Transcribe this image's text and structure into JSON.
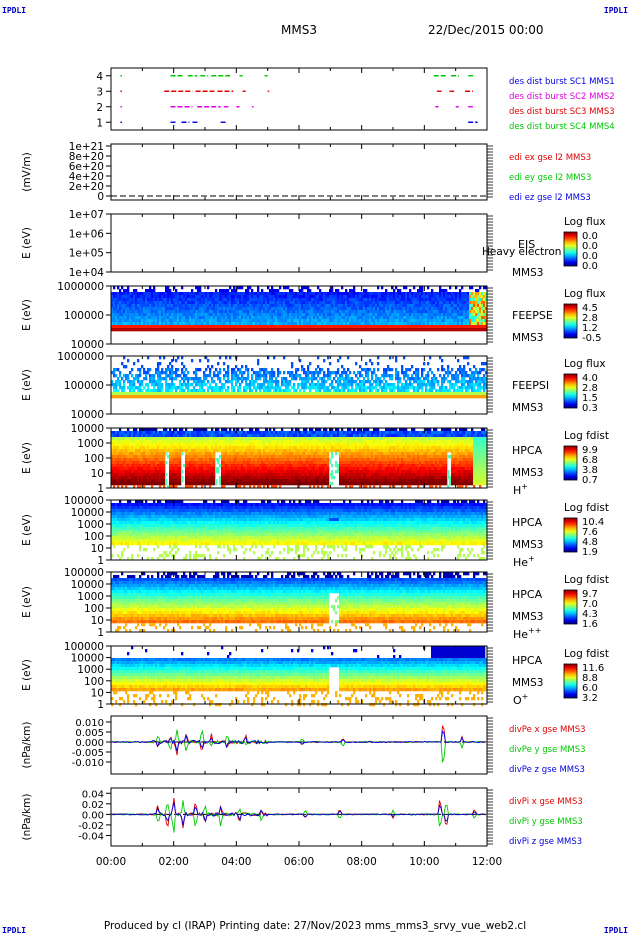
{
  "header": {
    "corner_tl": "IPDLI",
    "corner_tr": "IPDLI",
    "corner_bl": "IPDLI",
    "corner_br": "IPDLI",
    "spacecraft": "MMS3",
    "date": "22/Dec/2015 00:00"
  },
  "footer": {
    "text": "Produced by cl (IRAP)    Printing date: 27/Nov/2023    mms_mms3_srvy_vue_web2.cl"
  },
  "colors": {
    "red": "#e00000",
    "green": "#00c800",
    "blue": "#0000e0",
    "magenta": "#e000e0"
  },
  "chart_data": [
    {
      "type": "scatter",
      "id": "burst",
      "ylabel": "",
      "ylim": [
        0.5,
        4.5
      ],
      "yticks": [
        1,
        2,
        3,
        4
      ],
      "xlim": [
        0,
        12
      ],
      "legend": [
        {
          "text": "des dist burst SC1 MMS1",
          "color": "#0000e0"
        },
        {
          "text": "des dist burst SC2 MMS2",
          "color": "#e000e0"
        },
        {
          "text": "des dist burst SC3 MMS3",
          "color": "#e00000"
        },
        {
          "text": "des dist burst SC4 MMS4",
          "color": "#00c800"
        }
      ],
      "series": [
        {
          "level": 4,
          "color": "#00c800",
          "segments": [
            [
              0.3,
              0.35
            ],
            [
              1.9,
              2.3
            ],
            [
              2.45,
              2.75
            ],
            [
              2.85,
              3.1
            ],
            [
              3.2,
              3.8
            ],
            [
              4.1,
              4.2
            ],
            [
              4.9,
              5.0
            ],
            [
              10.3,
              10.7
            ],
            [
              10.85,
              11.1
            ],
            [
              11.4,
              11.6
            ]
          ]
        },
        {
          "level": 3,
          "color": "#e00000",
          "segments": [
            [
              0.3,
              0.35
            ],
            [
              1.7,
              2.6
            ],
            [
              2.7,
              3.3
            ],
            [
              3.4,
              3.9
            ],
            [
              4.2,
              4.3
            ],
            [
              5.0,
              5.05
            ],
            [
              10.4,
              10.55
            ],
            [
              10.8,
              10.95
            ],
            [
              11.3,
              11.55
            ]
          ]
        },
        {
          "level": 2,
          "color": "#e000e0",
          "segments": [
            [
              0.3,
              0.35
            ],
            [
              1.9,
              2.6
            ],
            [
              2.75,
              3.5
            ],
            [
              3.6,
              3.75
            ],
            [
              4.0,
              4.1
            ],
            [
              4.5,
              4.55
            ],
            [
              10.35,
              10.45
            ],
            [
              11.0,
              11.1
            ],
            [
              11.4,
              11.55
            ]
          ]
        },
        {
          "level": 1,
          "color": "#0000e0",
          "segments": [
            [
              0.3,
              0.35
            ],
            [
              1.9,
              2.1
            ],
            [
              2.25,
              2.5
            ],
            [
              2.6,
              2.8
            ],
            [
              3.5,
              3.7
            ],
            [
              11.4,
              11.7
            ]
          ]
        }
      ]
    },
    {
      "type": "line",
      "id": "edi",
      "ylabel": "(mV/m)",
      "ytick_labels": [
        "1e+21",
        "8e+20",
        "6e+20",
        "4e+20",
        "2e+20",
        "0"
      ],
      "xlim": [
        0,
        12
      ],
      "legend": [
        {
          "text": "edi ex gse l2 MMS3",
          "color": "#e00000"
        },
        {
          "text": "edi ey gse l2 MMS3",
          "color": "#00c800"
        },
        {
          "text": "edi ez gse l2 MMS3",
          "color": "#0000e0"
        }
      ]
    },
    {
      "type": "heatmap",
      "id": "eis",
      "ylabel": "E (eV)",
      "ytick_labels": [
        "1e+07",
        "1e+06",
        "1e+05",
        "1e+04"
      ],
      "instrument": "EIS",
      "spacecraft": "MMS3",
      "overlap_label": "Heavy electron to",
      "colorbar_title": "Log flux",
      "colorbar_ticks": [
        "0.0",
        "0.0",
        "0.0",
        "0.0"
      ],
      "yscale": "log"
    },
    {
      "type": "heatmap",
      "id": "feepse",
      "ylabel": "E (eV)",
      "ytick_labels": [
        "1000000",
        "100000",
        "10000"
      ],
      "instrument": "FEEPSE",
      "spacecraft": "MMS3",
      "colorbar_title": "Log flux",
      "colorbar_ticks": [
        "4.5",
        "2.8",
        "1.2",
        "-0.5"
      ],
      "yscale": "log"
    },
    {
      "type": "heatmap",
      "id": "feepsi",
      "ylabel": "E (eV)",
      "ytick_labels": [
        "1000000",
        "100000",
        "10000"
      ],
      "instrument": "FEEPSI",
      "spacecraft": "MMS3",
      "colorbar_title": "Log flux",
      "colorbar_ticks": [
        "4.0",
        "2.8",
        "1.5",
        "0.3"
      ],
      "yscale": "log"
    },
    {
      "type": "heatmap",
      "id": "hpca_h",
      "ylabel": "E (eV)",
      "ytick_labels": [
        "10000",
        "1000",
        "100",
        "10",
        "1"
      ],
      "instrument": "HPCA",
      "spacecraft": "MMS3",
      "species": "H",
      "charge": "+",
      "colorbar_title": "Log fdist",
      "colorbar_ticks": [
        "9.9",
        "6.8",
        "3.8",
        "0.7"
      ],
      "yscale": "log"
    },
    {
      "type": "heatmap",
      "id": "hpca_he",
      "ylabel": "E (eV)",
      "ytick_labels": [
        "100000",
        "10000",
        "1000",
        "100",
        "10",
        "1"
      ],
      "instrument": "HPCA",
      "spacecraft": "MMS3",
      "species": "He",
      "charge": "+",
      "colorbar_title": "Log fdist",
      "colorbar_ticks": [
        "10.4",
        "7.6",
        "4.8",
        "1.9"
      ],
      "yscale": "log"
    },
    {
      "type": "heatmap",
      "id": "hpca_hepp",
      "ylabel": "E (eV)",
      "ytick_labels": [
        "100000",
        "10000",
        "1000",
        "100",
        "10",
        "1"
      ],
      "instrument": "HPCA",
      "spacecraft": "MMS3",
      "species": "He",
      "charge": "++",
      "colorbar_title": "Log fdist",
      "colorbar_ticks": [
        "9.7",
        "7.0",
        "4.3",
        "1.6"
      ],
      "yscale": "log"
    },
    {
      "type": "heatmap",
      "id": "hpca_o",
      "ylabel": "E (eV)",
      "ytick_labels": [
        "100000",
        "10000",
        "1000",
        "100",
        "10",
        "1"
      ],
      "instrument": "HPCA",
      "spacecraft": "MMS3",
      "species": "O",
      "charge": "+",
      "colorbar_title": "Log fdist",
      "colorbar_ticks": [
        "11.6",
        "8.8",
        "6.0",
        "3.2"
      ],
      "yscale": "log"
    },
    {
      "type": "line",
      "id": "divpe",
      "ylabel": "(nPa/km)",
      "ylim": [
        -0.016,
        0.013
      ],
      "yticks": [
        0.01,
        0.005,
        0.0,
        -0.005,
        -0.01
      ],
      "ytick_labels": [
        "0.010",
        "0.005",
        "0.000",
        "-0.005",
        "-0.010"
      ],
      "xlim": [
        0,
        12
      ],
      "legend": [
        {
          "text": "divPe x gse MMS3",
          "color": "#e00000"
        },
        {
          "text": "divPe y gse MMS3",
          "color": "#00c800"
        },
        {
          "text": "divPe z gse MMS3",
          "color": "#0000e0"
        }
      ],
      "spikes": [
        [
          1.5,
          -0.004,
          0.003
        ],
        [
          1.9,
          0.004,
          -0.005
        ],
        [
          2.1,
          -0.008,
          0.006
        ],
        [
          2.4,
          0.005,
          -0.004
        ],
        [
          2.9,
          -0.006,
          0.007
        ],
        [
          3.2,
          0.004,
          -0.003
        ],
        [
          3.7,
          -0.003,
          0.004
        ],
        [
          4.3,
          0.003,
          -0.002
        ],
        [
          6.1,
          -0.002,
          0.002
        ],
        [
          7.4,
          0.002,
          -0.003
        ],
        [
          10.6,
          0.012,
          -0.015
        ],
        [
          11.2,
          0.003,
          -0.003
        ]
      ]
    },
    {
      "type": "line",
      "id": "divpi",
      "ylabel": "(nPa/km)",
      "ylim": [
        -0.06,
        0.05
      ],
      "yticks": [
        0.04,
        0.02,
        0.0,
        -0.02,
        -0.04
      ],
      "ytick_labels": [
        "0.04",
        "0.02",
        "0.00",
        "-0.02",
        "-0.04"
      ],
      "xlim": [
        0,
        12
      ],
      "legend": [
        {
          "text": "divPi x gse MMS3",
          "color": "#e00000"
        },
        {
          "text": "divPi y gse MMS3",
          "color": "#00c800"
        },
        {
          "text": "divPi z gse MMS3",
          "color": "#0000e0"
        }
      ],
      "spikes": [
        [
          1.5,
          0.02,
          -0.02
        ],
        [
          1.8,
          -0.03,
          0.03
        ],
        [
          2.0,
          0.035,
          -0.04
        ],
        [
          2.3,
          -0.025,
          0.03
        ],
        [
          2.7,
          0.03,
          -0.03
        ],
        [
          3.0,
          -0.02,
          0.02
        ],
        [
          3.5,
          0.02,
          -0.025
        ],
        [
          4.1,
          -0.015,
          0.015
        ],
        [
          4.8,
          0.01,
          -0.012
        ],
        [
          6.2,
          -0.008,
          0.01
        ],
        [
          7.3,
          0.012,
          -0.01
        ],
        [
          9.0,
          -0.006,
          0.008
        ],
        [
          10.5,
          0.035,
          -0.03
        ],
        [
          10.7,
          -0.03,
          0.028
        ],
        [
          11.6,
          0.01,
          -0.01
        ]
      ]
    }
  ],
  "x_axis": {
    "tick_labels": [
      "00:00",
      "02:00",
      "04:00",
      "06:00",
      "08:00",
      "10:00",
      "12:00"
    ],
    "xlim": [
      0,
      12
    ]
  }
}
